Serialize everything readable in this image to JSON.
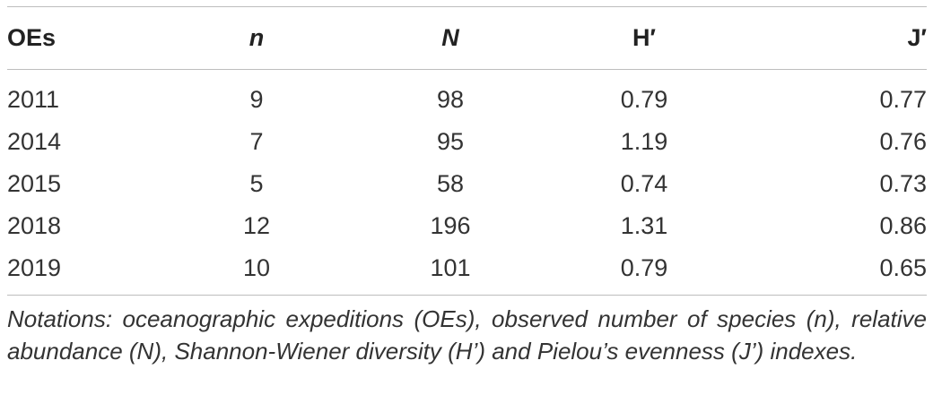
{
  "table": {
    "headers": [
      "OEs",
      "n",
      "N",
      "H′",
      "J′"
    ],
    "rows": [
      [
        "2011",
        "9",
        "98",
        "0.79",
        "0.77"
      ],
      [
        "2014",
        "7",
        "95",
        "1.19",
        "0.76"
      ],
      [
        "2015",
        "5",
        "58",
        "0.74",
        "0.73"
      ],
      [
        "2018",
        "12",
        "196",
        "1.31",
        "0.86"
      ],
      [
        "2019",
        "10",
        "101",
        "0.79",
        "0.65"
      ]
    ]
  },
  "footnote": "Notations: oceanographic expeditions (OEs), observed number of species (n), relative abundance (N), Shannon-Wiener diversity (H’) and Pielou’s evenness (J’) indexes."
}
